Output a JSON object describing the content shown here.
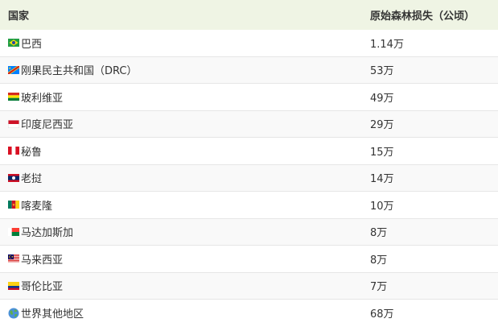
{
  "table": {
    "header": {
      "country": "国家",
      "loss": "原始森林损失（公顷）"
    },
    "rows": [
      {
        "country": "巴西",
        "loss": "1.14万",
        "flag_icon": "brazil-flag-icon"
      },
      {
        "country": "刚果民主共和国（DRC）",
        "loss": "53万",
        "flag_icon": "drc-flag-icon"
      },
      {
        "country": "玻利维亚",
        "loss": "49万",
        "flag_icon": "bolivia-flag-icon"
      },
      {
        "country": "印度尼西亚",
        "loss": "29万",
        "flag_icon": "indonesia-flag-icon"
      },
      {
        "country": "秘鲁",
        "loss": "15万",
        "flag_icon": "peru-flag-icon"
      },
      {
        "country": "老挝",
        "loss": "14万",
        "flag_icon": "laos-flag-icon"
      },
      {
        "country": "喀麦隆",
        "loss": "10万",
        "flag_icon": "cameroon-flag-icon"
      },
      {
        "country": "马达加斯加",
        "loss": "8万",
        "flag_icon": "madagascar-flag-icon"
      },
      {
        "country": "马来西亚",
        "loss": "8万",
        "flag_icon": "malaysia-flag-icon"
      },
      {
        "country": "哥伦比亚",
        "loss": "7万",
        "flag_icon": "colombia-flag-icon"
      },
      {
        "country": "世界其他地区",
        "loss": "68万",
        "flag_icon": "globe-icon"
      }
    ],
    "colors": {
      "header_background": "#eff4e4",
      "alt_row_background": "#f9f9f9",
      "border": "#e6e6e6",
      "text": "#333333"
    }
  }
}
